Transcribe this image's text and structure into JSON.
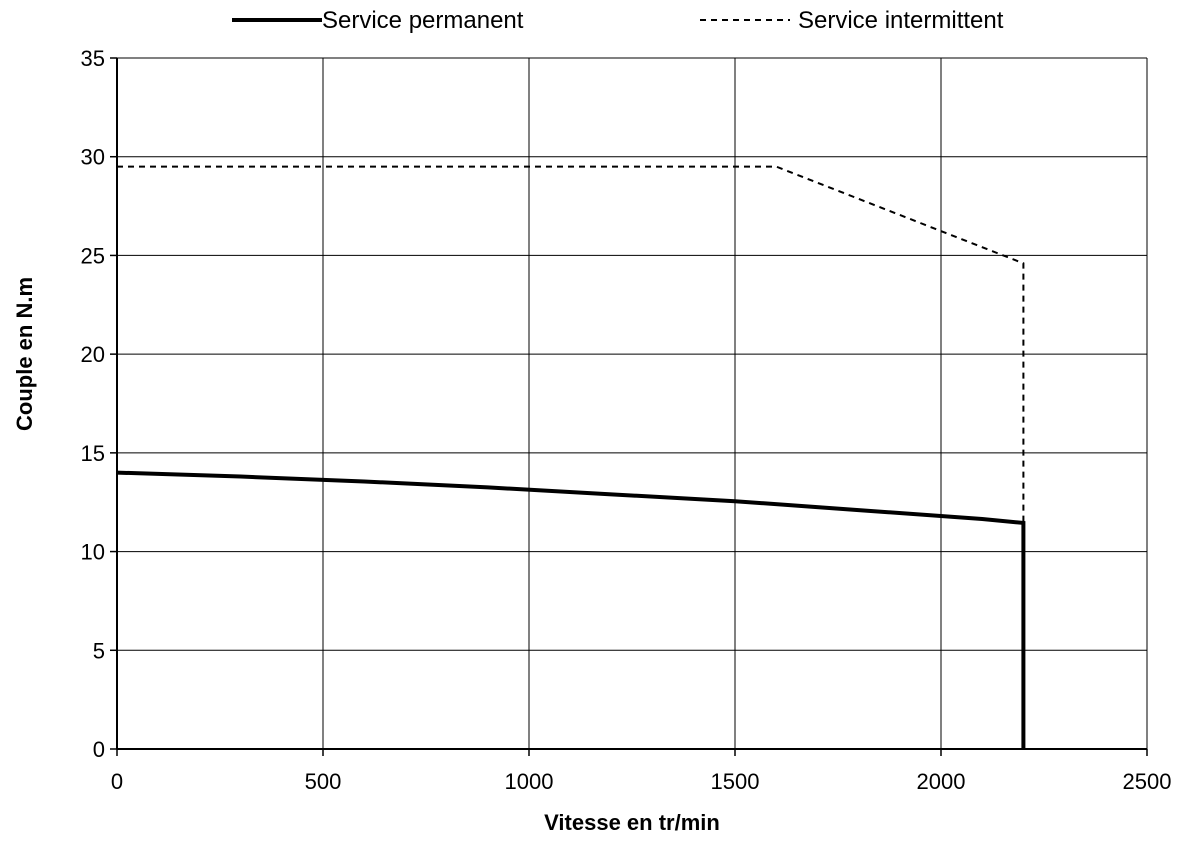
{
  "chart_data": {
    "type": "line",
    "title": "",
    "xlabel": "Vitesse en tr/min",
    "ylabel": "Couple en N.m",
    "xlim": [
      0,
      2500
    ],
    "ylim": [
      0,
      35
    ],
    "xticks": [
      0,
      500,
      1000,
      1500,
      2000,
      2500
    ],
    "yticks": [
      0,
      5,
      10,
      15,
      20,
      25,
      30,
      35
    ],
    "grid": true,
    "legend_position": "top",
    "series": [
      {
        "name": "Service permanent",
        "style": "solid",
        "color": "#000000",
        "x": [
          0,
          300,
          600,
          900,
          1200,
          1500,
          1800,
          2100,
          2200,
          2200
        ],
        "y": [
          14.0,
          13.8,
          13.55,
          13.25,
          12.9,
          12.55,
          12.1,
          11.65,
          11.45,
          0
        ]
      },
      {
        "name": "Service intermittent",
        "style": "dashed",
        "color": "#000000",
        "x": [
          0,
          1600,
          2200,
          2200
        ],
        "y": [
          29.5,
          29.5,
          24.6,
          11.45
        ]
      }
    ]
  }
}
